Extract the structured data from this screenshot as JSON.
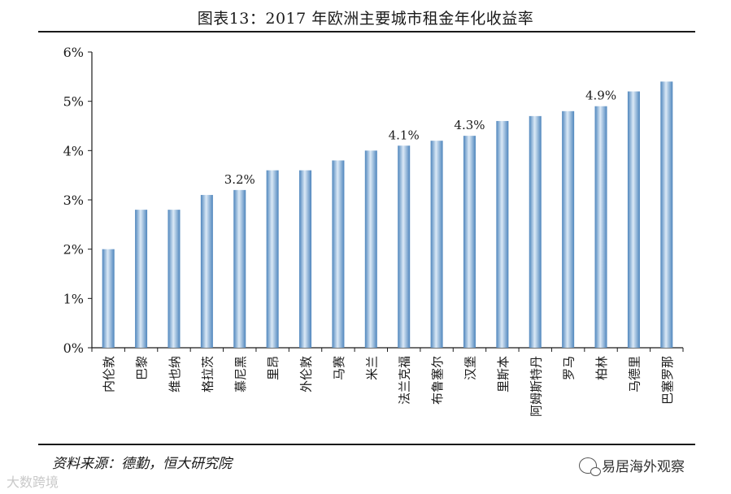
{
  "title": "图表13：2017 年欧洲主要城市租金年化收益率",
  "source": "资料来源：德勤，恒大研究院",
  "watermark_left": "大数跨境",
  "watermark_right": "易居海外观察",
  "chart_data": {
    "type": "bar",
    "title": "图表13：2017 年欧洲主要城市租金年化收益率",
    "categories": [
      "内伦敦",
      "巴黎",
      "维也纳",
      "格拉茨",
      "慕尼黑",
      "里昂",
      "外伦敦",
      "马赛",
      "米兰",
      "法兰克福",
      "布鲁塞尔",
      "汉堡",
      "里斯本",
      "阿姆斯特丹",
      "罗马",
      "柏林",
      "马德里",
      "巴塞罗那"
    ],
    "values": [
      2.0,
      2.8,
      2.8,
      3.1,
      3.2,
      3.6,
      3.6,
      3.8,
      4.0,
      4.1,
      4.2,
      4.3,
      4.6,
      4.7,
      4.8,
      4.9,
      5.2,
      5.4
    ],
    "data_labels": [
      {
        "index": 4,
        "text": "3.2%"
      },
      {
        "index": 9,
        "text": "4.1%"
      },
      {
        "index": 11,
        "text": "4.3%"
      },
      {
        "index": 15,
        "text": "4.9%"
      }
    ],
    "yticks": [
      "0%",
      "1%",
      "2%",
      "3%",
      "4%",
      "5%",
      "6%"
    ],
    "ylim": [
      0,
      6
    ],
    "grid": false,
    "bar_color": "#6fa2cf"
  }
}
